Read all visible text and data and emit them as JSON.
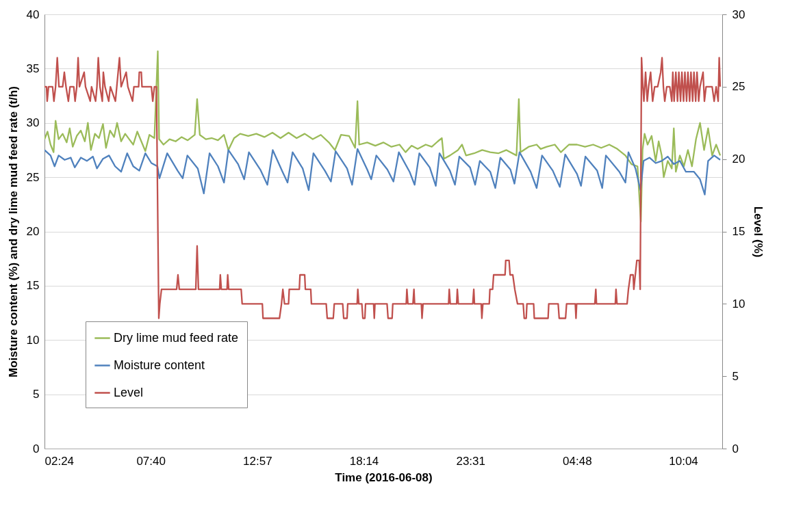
{
  "chart_data": {
    "type": "line",
    "xlabel": "Time (2016-06-08)",
    "ylabel": "Moisture content (%) and dry lime mud feed rate (t/h)",
    "y2label": "Level (%)",
    "xlim": [
      "2016-06-08T02:24",
      "2016-06-09T12:00"
    ],
    "xticks": [
      {
        "value": "2016-06-08T02:24",
        "label": "02:24"
      },
      {
        "value": "2016-06-08T07:40",
        "label": "07:40"
      },
      {
        "value": "2016-06-08T12:57",
        "label": "12:57"
      },
      {
        "value": "2016-06-08T18:14",
        "label": "18:14"
      },
      {
        "value": "2016-06-08T23:31",
        "label": "23:31"
      },
      {
        "value": "2016-06-09T04:48",
        "label": "04:48"
      },
      {
        "value": "2016-06-09T10:04",
        "label": "10:04"
      }
    ],
    "ylim": [
      0,
      40
    ],
    "yticks": [
      0,
      5,
      10,
      15,
      20,
      25,
      30,
      35,
      40
    ],
    "y2lim": [
      0,
      30
    ],
    "y2ticks": [
      0,
      5,
      10,
      15,
      20,
      25,
      30
    ],
    "grid": "y",
    "legend": "bottom left",
    "marker": "none",
    "line_style": "solid",
    "series": [
      {
        "name": "Dry lime mud feed rate",
        "color": "#9bbb59",
        "x": [
          "2016-06-08T02:24",
          "2016-06-08T02:33",
          "2016-06-08T02:42",
          "2016-06-08T02:51",
          "2016-06-08T02:57",
          "2016-06-08T03:06",
          "2016-06-08T03:18",
          "2016-06-08T03:30",
          "2016-06-08T03:39",
          "2016-06-08T03:48",
          "2016-06-08T04:00",
          "2016-06-08T04:12",
          "2016-06-08T04:24",
          "2016-06-08T04:33",
          "2016-06-08T04:42",
          "2016-06-08T04:54",
          "2016-06-08T05:06",
          "2016-06-08T05:18",
          "2016-06-08T05:27",
          "2016-06-08T05:39",
          "2016-06-08T05:51",
          "2016-06-08T06:00",
          "2016-06-08T06:12",
          "2016-06-08T06:24",
          "2016-06-08T06:36",
          "2016-06-08T06:48",
          "2016-06-08T07:00",
          "2016-06-08T07:12",
          "2016-06-08T07:24",
          "2016-06-08T07:36",
          "2016-06-08T07:51",
          "2016-06-08T08:01",
          "2016-06-08T08:05",
          "2016-06-08T08:18",
          "2016-06-08T08:36",
          "2016-06-08T08:54",
          "2016-06-08T09:12",
          "2016-06-08T09:30",
          "2016-06-08T09:51",
          "2016-06-08T09:58",
          "2016-06-08T10:06",
          "2016-06-08T10:24",
          "2016-06-08T10:42",
          "2016-06-08T11:00",
          "2016-06-08T11:18",
          "2016-06-08T11:31",
          "2016-06-08T11:48",
          "2016-06-08T12:06",
          "2016-06-08T12:30",
          "2016-06-08T12:54",
          "2016-06-08T13:18",
          "2016-06-08T13:42",
          "2016-06-08T14:06",
          "2016-06-08T14:30",
          "2016-06-08T14:54",
          "2016-06-08T15:18",
          "2016-06-08T15:42",
          "2016-06-08T16:06",
          "2016-06-08T16:30",
          "2016-06-08T16:48",
          "2016-06-08T17:06",
          "2016-06-08T17:30",
          "2016-06-08T17:48",
          "2016-06-08T17:55",
          "2016-06-08T18:00",
          "2016-06-08T18:24",
          "2016-06-08T18:48",
          "2016-06-08T19:12",
          "2016-06-08T19:36",
          "2016-06-08T20:00",
          "2016-06-08T20:18",
          "2016-06-08T20:36",
          "2016-06-08T20:54",
          "2016-06-08T21:18",
          "2016-06-08T21:36",
          "2016-06-08T21:54",
          "2016-06-08T22:06",
          "2016-06-08T22:12",
          "2016-06-08T22:30",
          "2016-06-08T22:54",
          "2016-06-08T23:06",
          "2016-06-08T23:18",
          "2016-06-08T23:42",
          "2016-06-09T00:06",
          "2016-06-09T00:30",
          "2016-06-09T00:54",
          "2016-06-09T01:18",
          "2016-06-09T01:48",
          "2016-06-09T01:55",
          "2016-06-09T02:00",
          "2016-06-09T02:24",
          "2016-06-09T02:48",
          "2016-06-09T03:00",
          "2016-06-09T03:18",
          "2016-06-09T03:42",
          "2016-06-09T04:00",
          "2016-06-09T04:24",
          "2016-06-09T04:48",
          "2016-06-09T05:12",
          "2016-06-09T05:36",
          "2016-06-09T06:00",
          "2016-06-09T06:24",
          "2016-06-09T06:48",
          "2016-06-09T07:12",
          "2016-06-09T07:30",
          "2016-06-09T07:48",
          "2016-06-09T07:58",
          "2016-06-09T08:03",
          "2016-06-09T08:09",
          "2016-06-09T08:18",
          "2016-06-09T08:30",
          "2016-06-09T08:42",
          "2016-06-09T08:51",
          "2016-06-09T09:00",
          "2016-06-09T09:06",
          "2016-06-09T09:18",
          "2016-06-09T09:30",
          "2016-06-09T09:36",
          "2016-06-09T09:42",
          "2016-06-09T09:54",
          "2016-06-09T10:06",
          "2016-06-09T10:18",
          "2016-06-09T10:30",
          "2016-06-09T10:42",
          "2016-06-09T10:54",
          "2016-06-09T11:06",
          "2016-06-09T11:18",
          "2016-06-09T11:30",
          "2016-06-09T11:42",
          "2016-06-09T11:54"
        ],
        "values": [
          28.5,
          29.2,
          28.0,
          27.3,
          30.2,
          28.5,
          29.0,
          28.2,
          29.5,
          27.8,
          28.8,
          29.3,
          28.3,
          30.0,
          27.5,
          29.0,
          28.6,
          29.9,
          27.7,
          29.3,
          28.7,
          30.0,
          28.3,
          29.0,
          28.5,
          28.0,
          29.2,
          28.3,
          27.4,
          28.9,
          28.6,
          36.6,
          28.5,
          28.0,
          28.5,
          28.3,
          28.7,
          28.4,
          28.9,
          32.2,
          28.9,
          28.5,
          28.6,
          28.4,
          28.9,
          27.5,
          28.6,
          29.0,
          28.8,
          29.0,
          28.7,
          29.1,
          28.6,
          29.1,
          28.6,
          29.0,
          28.5,
          28.9,
          28.2,
          27.5,
          28.9,
          28.8,
          27.7,
          32.0,
          28.0,
          28.2,
          27.9,
          28.2,
          27.8,
          28.0,
          27.3,
          27.9,
          27.6,
          28.0,
          27.8,
          28.3,
          28.6,
          26.7,
          27.0,
          27.5,
          28.0,
          27.0,
          27.2,
          27.5,
          27.3,
          27.2,
          27.5,
          27.0,
          32.2,
          27.3,
          27.8,
          28.0,
          27.6,
          27.8,
          28.0,
          27.3,
          28.0,
          28.0,
          27.8,
          28.0,
          27.7,
          28.0,
          27.6,
          27.0,
          26.2,
          26.0,
          20.9,
          27.5,
          29.0,
          28.0,
          28.8,
          26.5,
          28.3,
          27.0,
          25.0,
          26.5,
          25.8,
          29.5,
          25.5,
          27.0,
          26.0,
          27.5,
          26.0,
          28.5,
          30.0,
          27.5,
          29.5,
          27.0,
          28.0,
          27.0
        ]
      },
      {
        "name": "Moisture content",
        "color": "#4f81bd",
        "x": [
          "2016-06-08T02:24",
          "2016-06-08T02:42",
          "2016-06-08T02:54",
          "2016-06-08T03:06",
          "2016-06-08T03:24",
          "2016-06-08T03:42",
          "2016-06-08T03:54",
          "2016-06-08T04:12",
          "2016-06-08T04:30",
          "2016-06-08T04:48",
          "2016-06-08T05:00",
          "2016-06-08T05:18",
          "2016-06-08T05:36",
          "2016-06-08T05:54",
          "2016-06-08T06:12",
          "2016-06-08T06:30",
          "2016-06-08T06:48",
          "2016-06-08T07:06",
          "2016-06-08T07:24",
          "2016-06-08T07:42",
          "2016-06-08T08:00",
          "2016-06-08T08:06",
          "2016-06-08T08:29",
          "2016-06-08T09:00",
          "2016-06-08T09:15",
          "2016-06-08T09:29",
          "2016-06-08T10:00",
          "2016-06-08T10:18",
          "2016-06-08T10:35",
          "2016-06-08T11:00",
          "2016-06-08T11:18",
          "2016-06-08T11:31",
          "2016-06-08T12:00",
          "2016-06-08T12:18",
          "2016-06-08T12:32",
          "2016-06-08T13:06",
          "2016-06-08T13:27",
          "2016-06-08T13:43",
          "2016-06-08T14:12",
          "2016-06-08T14:27",
          "2016-06-08T14:42",
          "2016-06-08T15:12",
          "2016-06-08T15:30",
          "2016-06-08T15:44",
          "2016-06-08T16:18",
          "2016-06-08T16:36",
          "2016-06-08T16:50",
          "2016-06-08T17:24",
          "2016-06-08T17:39",
          "2016-06-08T17:55",
          "2016-06-08T18:24",
          "2016-06-08T18:36",
          "2016-06-08T18:51",
          "2016-06-08T19:24",
          "2016-06-08T19:42",
          "2016-06-08T19:58",
          "2016-06-08T20:30",
          "2016-06-08T20:45",
          "2016-06-08T20:59",
          "2016-06-08T21:30",
          "2016-06-08T21:48",
          "2016-06-08T21:59",
          "2016-06-08T22:30",
          "2016-06-08T22:45",
          "2016-06-08T22:58",
          "2016-06-08T23:30",
          "2016-06-08T23:45",
          "2016-06-08T23:59",
          "2016-06-09T00:30",
          "2016-06-09T00:45",
          "2016-06-09T01:00",
          "2016-06-09T01:30",
          "2016-06-09T01:42",
          "2016-06-09T01:57",
          "2016-06-09T02:30",
          "2016-06-09T02:48",
          "2016-06-09T03:04",
          "2016-06-09T03:36",
          "2016-06-09T03:57",
          "2016-06-09T04:13",
          "2016-06-09T04:48",
          "2016-06-09T05:00",
          "2016-06-09T05:13",
          "2016-06-09T05:48",
          "2016-06-09T06:03",
          "2016-06-09T06:14",
          "2016-06-09T06:54",
          "2016-06-09T07:12",
          "2016-06-09T07:21",
          "2016-06-09T07:42",
          "2016-06-09T07:57",
          "2016-06-09T08:06",
          "2016-06-09T08:24",
          "2016-06-09T08:42",
          "2016-06-09T09:00",
          "2016-06-09T09:18",
          "2016-06-09T09:36",
          "2016-06-09T09:54",
          "2016-06-09T10:12",
          "2016-06-09T10:36",
          "2016-06-09T10:54",
          "2016-06-09T11:08",
          "2016-06-09T11:18",
          "2016-06-09T11:36",
          "2016-06-09T11:54"
        ],
        "values": [
          27.5,
          27.0,
          26.0,
          27.0,
          26.6,
          26.8,
          25.9,
          26.8,
          26.5,
          26.9,
          25.8,
          26.7,
          27.0,
          26.0,
          25.5,
          27.2,
          26.0,
          25.6,
          27.2,
          26.3,
          26.0,
          24.9,
          27.2,
          25.6,
          24.9,
          27.0,
          25.8,
          23.5,
          27.2,
          26.0,
          24.5,
          27.5,
          26.2,
          24.8,
          27.3,
          25.7,
          24.3,
          27.5,
          25.5,
          24.5,
          27.3,
          25.8,
          23.8,
          27.2,
          25.6,
          24.6,
          27.4,
          25.8,
          24.3,
          27.6,
          25.7,
          24.8,
          27.0,
          25.7,
          24.6,
          27.3,
          25.5,
          24.3,
          27.2,
          25.9,
          24.2,
          27.2,
          25.6,
          24.3,
          26.9,
          25.9,
          24.3,
          26.5,
          25.5,
          24.0,
          26.8,
          25.7,
          24.4,
          27.3,
          25.5,
          24.0,
          27.0,
          25.6,
          24.1,
          27.1,
          25.3,
          24.2,
          26.9,
          25.6,
          24.0,
          27.0,
          25.5,
          24.5,
          27.3,
          25.8,
          23.8,
          26.5,
          26.8,
          26.3,
          26.5,
          26.9,
          26.2,
          26.5,
          25.5,
          25.5,
          24.8,
          23.4,
          26.5,
          27.0,
          26.6
        ]
      },
      {
        "name": "Level",
        "color": "#c0504d",
        "axis": "y2",
        "x": [
          "2016-06-08T02:24",
          "2016-06-08T02:30",
          "2016-06-08T02:32",
          "2016-06-08T02:36",
          "2016-06-08T02:48",
          "2016-06-08T02:52",
          "2016-06-08T02:57",
          "2016-06-08T03:02",
          "2016-06-08T03:07",
          "2016-06-08T03:18",
          "2016-06-08T03:23",
          "2016-06-08T03:28",
          "2016-06-08T03:35",
          "2016-06-08T03:40",
          "2016-06-08T03:51",
          "2016-06-08T03:55",
          "2016-06-08T04:00",
          "2016-06-08T04:04",
          "2016-06-08T04:08",
          "2016-06-08T04:22",
          "2016-06-08T04:26",
          "2016-06-08T04:40",
          "2016-06-08T04:44",
          "2016-06-08T04:56",
          "2016-06-08T05:00",
          "2016-06-08T05:04",
          "2016-06-08T05:09",
          "2016-06-08T05:16",
          "2016-06-08T05:19",
          "2016-06-08T05:24",
          "2016-06-08T05:35",
          "2016-06-08T05:40",
          "2016-06-08T05:55",
          "2016-06-08T05:59",
          "2016-06-08T06:07",
          "2016-06-08T06:12",
          "2016-06-08T06:27",
          "2016-06-08T06:32",
          "2016-06-08T06:46",
          "2016-06-08T06:50",
          "2016-06-08T07:04",
          "2016-06-08T07:06",
          "2016-06-08T07:12",
          "2016-06-08T07:14",
          "2016-06-08T07:42",
          "2016-06-08T07:46",
          "2016-06-08T07:51",
          "2016-06-08T07:57",
          "2016-06-08T08:04",
          "2016-06-08T08:07",
          "2016-06-08T08:12",
          "2016-06-08T08:57",
          "2016-06-08T09:01",
          "2016-06-08T09:05",
          "2016-06-08T09:54",
          "2016-06-08T09:58",
          "2016-06-08T10:02",
          "2016-06-08T11:05",
          "2016-06-08T11:07",
          "2016-06-08T11:10",
          "2016-06-08T11:27",
          "2016-06-08T11:29",
          "2016-06-08T11:32",
          "2016-06-08T12:09",
          "2016-06-08T12:12",
          "2016-06-08T13:12",
          "2016-06-08T13:14",
          "2016-06-08T14:03",
          "2016-06-08T14:09",
          "2016-06-08T14:13",
          "2016-06-08T14:18",
          "2016-06-08T14:30",
          "2016-06-08T14:32",
          "2016-06-08T15:02",
          "2016-06-08T15:04",
          "2016-06-08T15:18",
          "2016-06-08T15:20",
          "2016-06-08T15:36",
          "2016-06-08T15:38",
          "2016-06-08T16:22",
          "2016-06-08T16:25",
          "2016-06-08T16:43",
          "2016-06-08T16:46",
          "2016-06-08T17:11",
          "2016-06-08T17:14",
          "2016-06-08T17:24",
          "2016-06-08T17:26",
          "2016-06-08T17:54",
          "2016-06-08T17:56",
          "2016-06-08T17:59",
          "2016-06-08T18:08",
          "2016-06-08T18:11",
          "2016-06-08T18:17",
          "2016-06-08T18:19",
          "2016-06-08T18:43",
          "2016-06-08T18:45",
          "2016-06-08T18:47",
          "2016-06-08T19:23",
          "2016-06-08T19:26",
          "2016-06-08T19:38",
          "2016-06-08T19:40",
          "2016-06-08T20:20",
          "2016-06-08T20:22",
          "2016-06-08T20:25",
          "2016-06-08T20:40",
          "2016-06-08T20:43",
          "2016-06-08T20:45",
          "2016-06-08T21:05",
          "2016-06-08T21:07",
          "2016-06-08T21:10",
          "2016-06-08T22:26",
          "2016-06-08T22:28",
          "2016-06-08T22:31",
          "2016-06-08T22:50",
          "2016-06-08T22:52",
          "2016-06-08T22:55",
          "2016-06-08T23:38",
          "2016-06-08T23:41",
          "2016-06-08T23:43",
          "2016-06-09T00:03",
          "2016-06-09T00:05",
          "2016-06-09T00:08",
          "2016-06-09T00:27",
          "2016-06-09T00:29",
          "2016-06-09T00:37",
          "2016-06-09T00:40",
          "2016-06-09T01:14",
          "2016-06-09T01:16",
          "2016-06-09T01:26",
          "2016-06-09T01:29",
          "2016-06-09T01:37",
          "2016-06-09T01:43",
          "2016-06-09T01:51",
          "2016-06-09T02:08",
          "2016-06-09T02:11",
          "2016-06-09T02:17",
          "2016-06-09T02:19",
          "2016-06-09T02:39",
          "2016-06-09T02:41",
          "2016-06-09T03:22",
          "2016-06-09T03:24",
          "2016-06-09T03:52",
          "2016-06-09T03:55",
          "2016-06-09T04:14",
          "2016-06-09T04:17",
          "2016-06-09T04:43",
          "2016-06-09T04:45",
          "2016-06-09T04:47",
          "2016-06-09T05:41",
          "2016-06-09T05:44",
          "2016-06-09T05:46",
          "2016-06-09T06:42",
          "2016-06-09T06:44",
          "2016-06-09T06:47",
          "2016-06-09T07:17",
          "2016-06-09T07:21",
          "2016-06-09T07:27",
          "2016-06-09T07:35",
          "2016-06-09T07:37",
          "2016-06-09T07:46",
          "2016-06-09T07:53",
          "2016-06-09T07:56",
          "2016-06-09T08:00",
          "2016-06-09T08:04",
          "2016-06-09T08:07",
          "2016-06-09T08:12",
          "2016-06-09T08:17",
          "2016-06-09T08:21",
          "2016-06-09T08:27",
          "2016-06-09T08:33",
          "2016-06-09T08:39",
          "2016-06-09T08:48",
          "2016-06-09T08:57",
          "2016-06-09T09:01",
          "2016-06-09T09:05",
          "2016-06-09T09:09",
          "2016-06-09T09:15",
          "2016-06-09T09:24",
          "2016-06-09T09:30",
          "2016-06-09T09:33",
          "2016-06-09T09:37",
          "2016-06-09T09:42",
          "2016-06-09T09:47",
          "2016-06-09T09:51",
          "2016-06-09T09:56",
          "2016-06-09T10:00",
          "2016-06-09T10:05",
          "2016-06-09T10:09",
          "2016-06-09T10:14",
          "2016-06-09T10:18",
          "2016-06-09T10:23",
          "2016-06-09T10:27",
          "2016-06-09T10:32",
          "2016-06-09T10:36",
          "2016-06-09T10:41",
          "2016-06-09T10:45",
          "2016-06-09T10:50",
          "2016-06-09T10:54",
          "2016-06-09T11:03",
          "2016-06-09T11:07",
          "2016-06-09T11:12",
          "2016-06-09T11:30",
          "2016-06-09T11:36",
          "2016-06-09T11:42",
          "2016-06-09T11:48",
          "2016-06-09T11:51",
          "2016-06-09T11:54"
        ],
        "values": [
          25,
          25,
          24,
          25,
          25,
          24,
          25,
          27,
          25,
          25,
          26,
          25,
          24,
          25,
          25,
          24,
          25,
          27,
          25,
          26,
          25,
          24,
          25,
          24,
          25,
          27,
          25,
          24,
          26,
          25,
          24,
          25,
          24,
          25,
          27,
          25,
          26,
          25,
          24,
          25,
          25,
          26,
          26,
          25,
          25,
          24,
          25,
          25,
          9,
          10,
          11,
          11,
          12,
          11,
          11,
          14,
          11,
          11,
          12,
          11,
          11,
          12,
          11,
          11,
          10,
          10,
          9,
          9,
          10,
          11,
          10,
          10,
          11,
          11,
          12,
          12,
          11,
          11,
          10,
          10,
          9,
          9,
          10,
          10,
          9,
          9,
          10,
          10,
          11,
          10,
          10,
          9,
          9,
          10,
          10,
          9,
          10,
          10,
          9,
          9,
          10,
          10,
          11,
          10,
          10,
          11,
          10,
          10,
          9,
          10,
          10,
          11,
          10,
          10,
          11,
          10,
          10,
          11,
          10,
          10,
          9,
          10,
          10,
          11,
          11,
          12,
          12,
          13,
          13,
          12,
          12,
          11,
          10,
          10,
          9,
          9,
          10,
          10,
          9,
          9,
          10,
          10,
          9,
          9,
          10,
          10,
          9,
          10,
          10,
          11,
          10,
          10,
          11,
          10,
          10,
          11,
          12,
          12,
          11,
          13,
          13,
          11,
          27,
          25,
          24,
          26,
          24,
          25,
          26,
          24,
          25,
          25,
          26,
          27,
          25,
          24,
          25,
          25,
          24,
          26,
          24,
          26,
          24,
          26,
          24,
          26,
          24,
          26,
          24,
          26,
          24,
          26,
          24,
          26,
          24,
          26,
          24,
          25,
          26,
          24,
          25,
          25,
          24,
          25,
          24,
          27,
          25
        ]
      }
    ]
  }
}
